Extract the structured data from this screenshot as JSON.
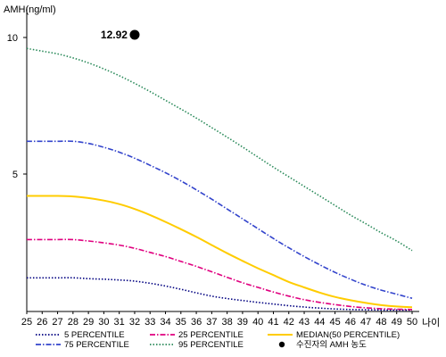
{
  "chart_data": {
    "type": "line",
    "ylabel": "AMH(ng/ml)",
    "xlabel": "나이",
    "xlim": [
      25,
      50
    ],
    "ylim": [
      0,
      11
    ],
    "yticks": [
      5,
      10
    ],
    "x": [
      25,
      26,
      27,
      28,
      29,
      30,
      31,
      32,
      33,
      34,
      35,
      36,
      37,
      38,
      39,
      40,
      41,
      42,
      43,
      44,
      45,
      46,
      47,
      48,
      49,
      50
    ],
    "series": [
      {
        "name": "5 PERCENTILE",
        "color": "#000080",
        "style": "dotted",
        "values": [
          1.2,
          1.2,
          1.2,
          1.2,
          1.17,
          1.15,
          1.12,
          1.08,
          1.0,
          0.9,
          0.78,
          0.65,
          0.53,
          0.44,
          0.37,
          0.3,
          0.24,
          0.18,
          0.13,
          0.09,
          0.06,
          0.04,
          0.03,
          0.02,
          0.02,
          0.02
        ]
      },
      {
        "name": "25 PERCENTILE",
        "color": "#e0007f",
        "style": "dash-dot",
        "values": [
          2.6,
          2.6,
          2.6,
          2.6,
          2.55,
          2.48,
          2.4,
          2.28,
          2.13,
          1.98,
          1.8,
          1.62,
          1.42,
          1.22,
          1.02,
          0.85,
          0.68,
          0.53,
          0.4,
          0.3,
          0.22,
          0.15,
          0.1,
          0.07,
          0.05,
          0.04
        ]
      },
      {
        "name": "MEDIAN(50 PERCENTILE)",
        "color": "#ffcc00",
        "style": "solid",
        "values": [
          4.2,
          4.2,
          4.2,
          4.18,
          4.12,
          4.03,
          3.9,
          3.72,
          3.5,
          3.25,
          2.98,
          2.7,
          2.4,
          2.1,
          1.82,
          1.55,
          1.3,
          1.05,
          0.85,
          0.66,
          0.5,
          0.38,
          0.28,
          0.2,
          0.15,
          0.12
        ]
      },
      {
        "name": "75 PERCENTILE",
        "color": "#3344cc",
        "style": "dash-dot",
        "values": [
          6.2,
          6.2,
          6.2,
          6.2,
          6.12,
          5.98,
          5.8,
          5.58,
          5.32,
          5.05,
          4.75,
          4.42,
          4.08,
          3.72,
          3.36,
          3.0,
          2.64,
          2.3,
          1.98,
          1.68,
          1.4,
          1.15,
          0.93,
          0.75,
          0.6,
          0.45
        ]
      },
      {
        "name": "95 PERCENTILE",
        "color": "#2a8a5a",
        "style": "dotted",
        "values": [
          9.6,
          9.5,
          9.4,
          9.25,
          9.07,
          8.85,
          8.6,
          8.32,
          8.02,
          7.7,
          7.38,
          7.05,
          6.7,
          6.35,
          5.99,
          5.62,
          5.25,
          4.9,
          4.55,
          4.2,
          3.85,
          3.5,
          3.18,
          2.85,
          2.55,
          2.2
        ]
      }
    ],
    "marker": {
      "name": "수진자의 AMH 농도",
      "x": 32,
      "y": 10.1,
      "label": "12.92",
      "color": "#000000"
    },
    "legend": [
      {
        "label": "5 PERCENTILE",
        "series": 0
      },
      {
        "label": "25 PERCENTILE",
        "series": 1
      },
      {
        "label": "MEDIAN(50 PERCENTILE)",
        "series": 2
      },
      {
        "label": "75 PERCENTILE",
        "series": 3
      },
      {
        "label": "95 PERCENTILE",
        "series": 4
      },
      {
        "label": "수진자의 AMH 농도",
        "marker": true
      }
    ],
    "grid": false,
    "legend_position": "bottom"
  }
}
